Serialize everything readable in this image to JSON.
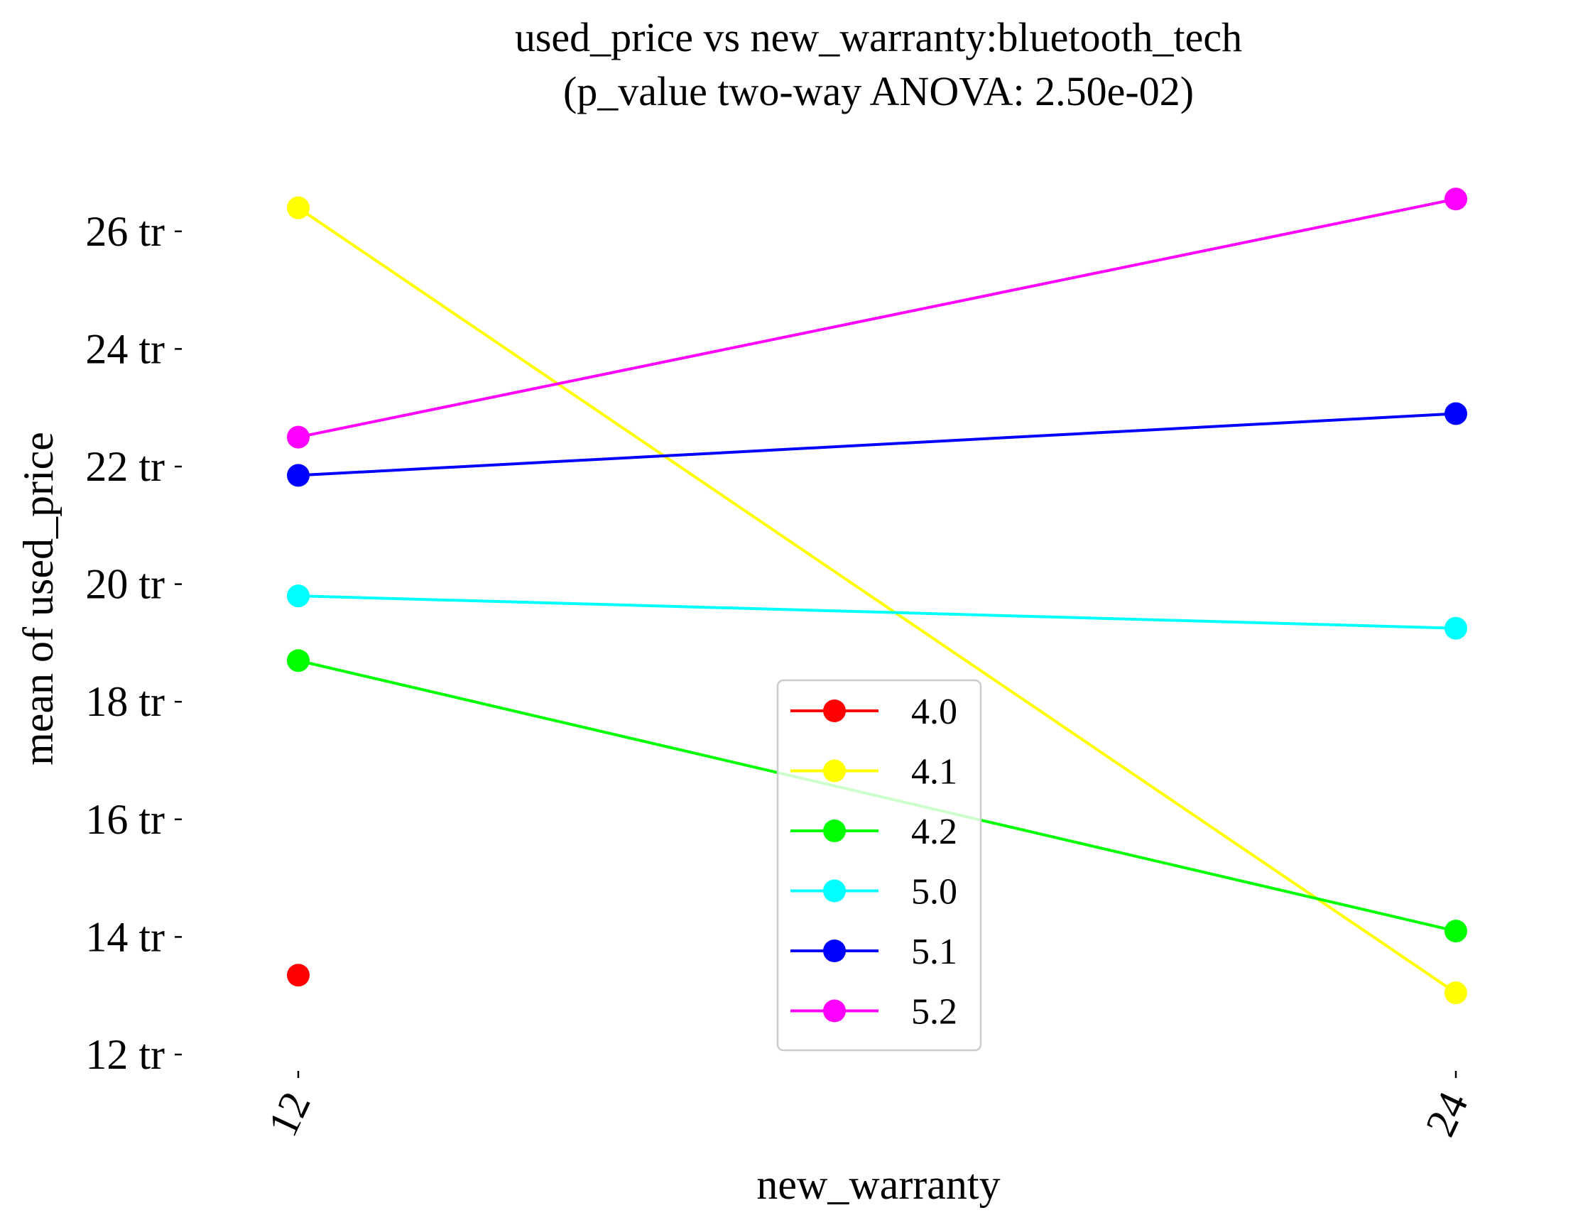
{
  "chart_data": {
    "type": "line",
    "title": "used_price vs new_warranty:bluetooth_tech",
    "subtitle": "(p_value two-way ANOVA: 2.50e-02)",
    "xlabel": "new_warranty",
    "ylabel": "mean of used_price",
    "categories": [
      "12",
      "24"
    ],
    "ylim": [
      11.6,
      27.0
    ],
    "yticks": [
      12,
      14,
      16,
      18,
      20,
      22,
      24,
      26
    ],
    "ytick_labels": [
      "12 tr",
      "14 tr",
      "16 tr",
      "18 tr",
      "20 tr",
      "22 tr",
      "24 tr",
      "26 tr"
    ],
    "grid": false,
    "legend_position": "center-bottom",
    "series": [
      {
        "name": "4.0",
        "color": "#ff0000",
        "values": [
          13.35,
          null
        ]
      },
      {
        "name": "4.1",
        "color": "#ffff00",
        "values": [
          26.4,
          13.05
        ]
      },
      {
        "name": "4.2",
        "color": "#00ff00",
        "values": [
          18.7,
          14.1
        ]
      },
      {
        "name": "5.0",
        "color": "#00ffff",
        "values": [
          19.8,
          19.25
        ]
      },
      {
        "name": "5.1",
        "color": "#0000ff",
        "values": [
          21.85,
          22.9
        ]
      },
      {
        "name": "5.2",
        "color": "#ff00ff",
        "values": [
          22.5,
          26.55
        ]
      }
    ]
  }
}
